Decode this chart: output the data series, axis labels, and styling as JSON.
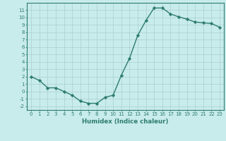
{
  "xlabel": "Humidex (Indice chaleur)",
  "ylabel": "",
  "x_values": [
    0,
    1,
    2,
    3,
    4,
    5,
    6,
    7,
    8,
    9,
    10,
    11,
    12,
    13,
    14,
    15,
    16,
    17,
    18,
    19,
    20,
    21,
    22,
    23
  ],
  "y_values": [
    2,
    1.5,
    0.5,
    0.5,
    0,
    -0.5,
    -1.3,
    -1.6,
    -1.6,
    -0.8,
    -0.5,
    2.2,
    4.5,
    7.6,
    9.6,
    11.3,
    11.3,
    10.5,
    10.1,
    9.8,
    9.4,
    9.3,
    9.2,
    8.7
  ],
  "line_color": "#2d7d6e",
  "marker": "D",
  "marker_size": 2.2,
  "bg_color": "#c8ebeb",
  "grid_color": "#aacfcf",
  "tick_color": "#2d7d6e",
  "label_color": "#2d7d6e",
  "ylim": [
    -2.5,
    12
  ],
  "xlim": [
    -0.5,
    23.5
  ],
  "yticks": [
    -2,
    -1,
    0,
    1,
    2,
    3,
    4,
    5,
    6,
    7,
    8,
    9,
    10,
    11
  ],
  "xticks": [
    0,
    1,
    2,
    3,
    4,
    5,
    6,
    7,
    8,
    9,
    10,
    11,
    12,
    13,
    14,
    15,
    16,
    17,
    18,
    19,
    20,
    21,
    22,
    23
  ],
  "tick_fontsize": 5.0,
  "xlabel_fontsize": 6.2
}
